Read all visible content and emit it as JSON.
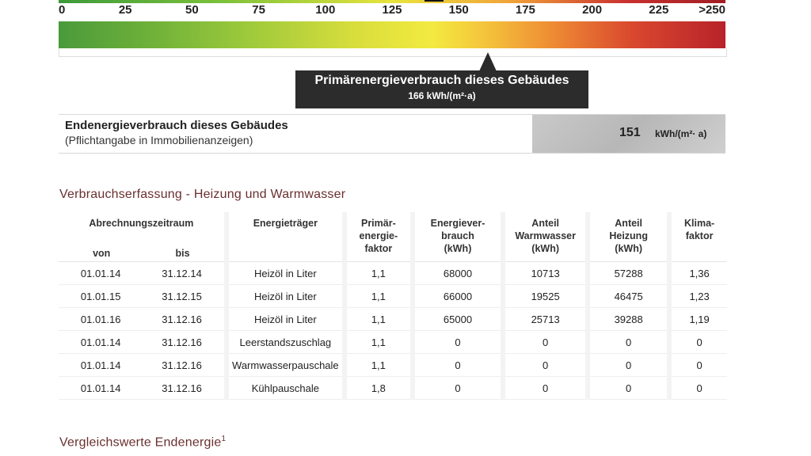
{
  "scale": {
    "ticks": [
      "0",
      "25",
      "50",
      "75",
      "100",
      "125",
      "150",
      "175",
      "200",
      "225",
      ">250"
    ],
    "marker_value": 166
  },
  "primary": {
    "title": "Primärenergieverbrauch dieses Gebäudes",
    "value": "166 kWh/(m²·a)"
  },
  "endenergie": {
    "title": "Endenergieverbrauch dieses Gebäudes",
    "subtitle": "(Pflichtangabe in Immobilienanzeigen)",
    "value": "151",
    "unit": "kWh/(m²· a)"
  },
  "section1_title": "Verbrauchserfassung - Heizung und Warmwasser",
  "table": {
    "headers": {
      "period": "Abrechnungszeitraum",
      "von": "von",
      "bis": "bis",
      "traeger": "Energieträger",
      "faktor": "Primär-\nenergie-\nfaktor",
      "verbrauch": "Energiever-\nbrauch\n(kWh)",
      "warmwasser": "Anteil\nWarmwasser\n(kWh)",
      "heizung": "Anteil\nHeizung\n(kWh)",
      "klima": "Klima-\nfaktor"
    },
    "rows": [
      {
        "von": "01.01.14",
        "bis": "31.12.14",
        "traeger": "Heizöl in Liter",
        "faktor": "1,1",
        "verbrauch": "68000",
        "warmwasser": "10713",
        "heizung": "57288",
        "klima": "1,36"
      },
      {
        "von": "01.01.15",
        "bis": "31.12.15",
        "traeger": "Heizöl in Liter",
        "faktor": "1,1",
        "verbrauch": "66000",
        "warmwasser": "19525",
        "heizung": "46475",
        "klima": "1,23"
      },
      {
        "von": "01.01.16",
        "bis": "31.12.16",
        "traeger": "Heizöl in Liter",
        "faktor": "1,1",
        "verbrauch": "65000",
        "warmwasser": "25713",
        "heizung": "39288",
        "klima": "1,19"
      },
      {
        "von": "01.01.14",
        "bis": "31.12.16",
        "traeger": "Leerstandszuschlag",
        "faktor": "1,1",
        "verbrauch": "0",
        "warmwasser": "0",
        "heizung": "0",
        "klima": "0"
      },
      {
        "von": "01.01.14",
        "bis": "31.12.16",
        "traeger": "Warmwasserpauschale",
        "faktor": "1,1",
        "verbrauch": "0",
        "warmwasser": "0",
        "heizung": "0",
        "klima": "0"
      },
      {
        "von": "01.01.14",
        "bis": "31.12.16",
        "traeger": "Kühlpauschale",
        "faktor": "1,8",
        "verbrauch": "0",
        "warmwasser": "0",
        "heizung": "0",
        "klima": "0"
      }
    ]
  },
  "section2_title": "Vergleichswerte Endenergie",
  "section2_sup": "1"
}
